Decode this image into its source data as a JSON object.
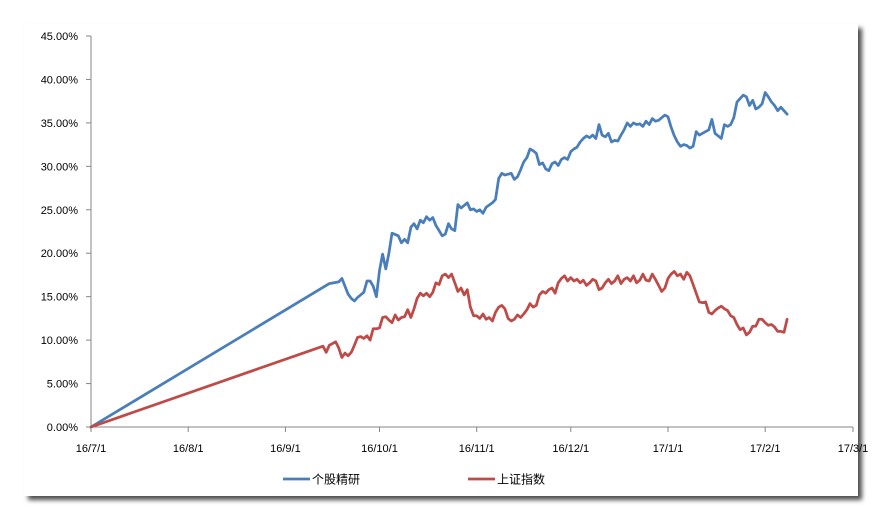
{
  "chart_data": {
    "type": "line",
    "title": "",
    "xlabel": "",
    "ylabel": "",
    "y_tick_labels": [
      "0.00%",
      "5.00%",
      "10.00%",
      "15.00%",
      "20.00%",
      "25.00%",
      "30.00%",
      "35.00%",
      "40.00%",
      "45.00%"
    ],
    "ylim": [
      0,
      45
    ],
    "x_tick_labels": [
      "16/7/1",
      "16/8/1",
      "16/9/1",
      "16/10/1",
      "16/11/1",
      "16/12/1",
      "17/1/1",
      "17/2/1",
      "17/3/1"
    ],
    "xlim": [
      "16/7/1",
      "17/3/1"
    ],
    "grid": false,
    "legend_position": "bottom",
    "series": [
      {
        "name": "个股精研",
        "color": "#4A7EBB",
        "points": [
          [
            "16/7/1",
            0.0
          ],
          [
            "16/9/15",
            16.5
          ],
          [
            "16/9/18",
            16.7
          ],
          [
            "16/9/19",
            17.1
          ],
          [
            "16/9/20",
            16.2
          ],
          [
            "16/9/21",
            15.3
          ],
          [
            "16/9/22",
            14.8
          ],
          [
            "16/9/23",
            14.5
          ],
          [
            "16/9/24",
            14.9
          ],
          [
            "16/9/26",
            15.5
          ],
          [
            "16/9/27",
            16.8
          ],
          [
            "16/9/28",
            16.8
          ],
          [
            "16/9/29",
            16.2
          ],
          [
            "16/9/30",
            15.0
          ],
          [
            "16/10/1",
            18.0
          ],
          [
            "16/10/2",
            19.9
          ],
          [
            "16/10/3",
            18.2
          ],
          [
            "16/10/4",
            20.0
          ],
          [
            "16/10/5",
            22.3
          ],
          [
            "16/10/7",
            22.0
          ],
          [
            "16/10/8",
            21.2
          ],
          [
            "16/10/9",
            21.6
          ],
          [
            "16/10/10",
            21.2
          ],
          [
            "16/10/11",
            23.0
          ],
          [
            "16/10/12",
            23.4
          ],
          [
            "16/10/13",
            22.8
          ],
          [
            "16/10/14",
            23.8
          ],
          [
            "16/10/15",
            23.5
          ],
          [
            "16/10/16",
            24.2
          ],
          [
            "16/10/17",
            23.8
          ],
          [
            "16/10/18",
            24.1
          ],
          [
            "16/10/19",
            23.2
          ],
          [
            "16/10/20",
            22.6
          ],
          [
            "16/10/21",
            22.0
          ],
          [
            "16/10/22",
            22.2
          ],
          [
            "16/10/23",
            23.4
          ],
          [
            "16/10/24",
            22.8
          ],
          [
            "16/10/25",
            22.6
          ],
          [
            "16/10/26",
            25.6
          ],
          [
            "16/10/27",
            25.2
          ],
          [
            "16/10/28",
            25.5
          ],
          [
            "16/10/29",
            25.8
          ],
          [
            "16/10/30",
            25.0
          ],
          [
            "16/10/31",
            25.1
          ],
          [
            "16/11/1",
            24.8
          ],
          [
            "16/11/2",
            25.0
          ],
          [
            "16/11/3",
            24.6
          ],
          [
            "16/11/4",
            25.3
          ],
          [
            "16/11/6",
            25.8
          ],
          [
            "16/11/7",
            26.2
          ],
          [
            "16/11/8",
            28.6
          ],
          [
            "16/11/9",
            29.2
          ],
          [
            "16/11/10",
            29.0
          ],
          [
            "16/11/11",
            29.1
          ],
          [
            "16/11/12",
            29.2
          ],
          [
            "16/11/13",
            28.5
          ],
          [
            "16/11/14",
            28.8
          ],
          [
            "16/11/15",
            29.6
          ],
          [
            "16/11/16",
            30.5
          ],
          [
            "16/11/17",
            31.0
          ],
          [
            "16/11/18",
            32.0
          ],
          [
            "16/11/19",
            31.8
          ],
          [
            "16/11/20",
            31.5
          ],
          [
            "16/11/21",
            30.2
          ],
          [
            "16/11/22",
            30.4
          ],
          [
            "16/11/23",
            29.7
          ],
          [
            "16/11/24",
            29.5
          ],
          [
            "16/11/25",
            30.3
          ],
          [
            "16/11/26",
            30.5
          ],
          [
            "16/11/27",
            30.1
          ],
          [
            "16/11/28",
            30.8
          ],
          [
            "16/11/29",
            31.0
          ],
          [
            "16/11/30",
            30.8
          ],
          [
            "16/12/1",
            31.7
          ],
          [
            "16/12/2",
            32.0
          ],
          [
            "16/12/3",
            32.2
          ],
          [
            "16/12/4",
            32.8
          ],
          [
            "16/12/5",
            33.2
          ],
          [
            "16/12/6",
            33.5
          ],
          [
            "16/12/7",
            33.3
          ],
          [
            "16/12/8",
            33.6
          ],
          [
            "16/12/9",
            33.2
          ],
          [
            "16/12/10",
            34.8
          ],
          [
            "16/12/11",
            33.6
          ],
          [
            "16/12/12",
            33.4
          ],
          [
            "16/12/13",
            33.8
          ],
          [
            "16/12/14",
            32.8
          ],
          [
            "16/12/15",
            33.0
          ],
          [
            "16/12/16",
            32.9
          ],
          [
            "16/12/17",
            33.6
          ],
          [
            "16/12/18",
            34.2
          ],
          [
            "16/12/19",
            35.0
          ],
          [
            "16/12/20",
            34.6
          ],
          [
            "16/12/21",
            35.0
          ],
          [
            "16/12/22",
            34.8
          ],
          [
            "16/12/23",
            34.9
          ],
          [
            "16/12/24",
            34.6
          ],
          [
            "16/12/25",
            35.2
          ],
          [
            "16/12/26",
            34.8
          ],
          [
            "16/12/27",
            35.5
          ],
          [
            "16/12/28",
            35.2
          ],
          [
            "16/12/29",
            35.3
          ],
          [
            "16/12/30",
            35.6
          ],
          [
            "16/12/31",
            35.9
          ],
          [
            "17/1/1",
            35.7
          ],
          [
            "17/1/2",
            34.5
          ],
          [
            "17/1/3",
            33.5
          ],
          [
            "17/1/4",
            32.8
          ],
          [
            "17/1/5",
            32.3
          ],
          [
            "17/1/6",
            32.5
          ],
          [
            "17/1/7",
            32.4
          ],
          [
            "17/1/8",
            32.1
          ],
          [
            "17/1/9",
            32.3
          ],
          [
            "17/1/10",
            34.0
          ],
          [
            "17/1/11",
            33.6
          ],
          [
            "17/1/12",
            33.8
          ],
          [
            "17/1/13",
            34.0
          ],
          [
            "17/1/14",
            34.2
          ],
          [
            "17/1/15",
            35.4
          ],
          [
            "17/1/16",
            33.8
          ],
          [
            "17/1/17",
            33.5
          ],
          [
            "17/1/18",
            33.2
          ],
          [
            "17/1/19",
            34.8
          ],
          [
            "17/1/20",
            34.6
          ],
          [
            "17/1/21",
            34.8
          ],
          [
            "17/1/22",
            35.6
          ],
          [
            "17/1/23",
            37.4
          ],
          [
            "17/1/24",
            37.8
          ],
          [
            "17/1/25",
            38.2
          ],
          [
            "17/1/26",
            38.0
          ],
          [
            "17/1/27",
            37.0
          ],
          [
            "17/1/28",
            37.6
          ],
          [
            "17/1/29",
            36.6
          ],
          [
            "17/1/30",
            36.8
          ],
          [
            "17/1/31",
            37.2
          ],
          [
            "17/2/1",
            38.5
          ],
          [
            "17/2/2",
            38.0
          ],
          [
            "17/2/3",
            37.4
          ],
          [
            "17/2/4",
            37.0
          ],
          [
            "17/2/5",
            36.4
          ],
          [
            "17/2/6",
            36.8
          ],
          [
            "17/2/7",
            36.4
          ],
          [
            "17/2/8",
            36.0
          ]
        ]
      },
      {
        "name": "上证指数",
        "color": "#BE4B48",
        "points": [
          [
            "16/7/1",
            0.0
          ],
          [
            "16/9/13",
            9.3
          ],
          [
            "16/9/14",
            8.6
          ],
          [
            "16/9/15",
            9.4
          ],
          [
            "16/9/17",
            9.8
          ],
          [
            "16/9/18",
            9.1
          ],
          [
            "16/9/19",
            8.0
          ],
          [
            "16/9/20",
            8.5
          ],
          [
            "16/9/21",
            8.2
          ],
          [
            "16/9/22",
            8.6
          ],
          [
            "16/9/23",
            9.4
          ],
          [
            "16/9/24",
            10.3
          ],
          [
            "16/9/25",
            10.4
          ],
          [
            "16/9/26",
            10.2
          ],
          [
            "16/9/27",
            10.5
          ],
          [
            "16/9/28",
            10.0
          ],
          [
            "16/9/29",
            11.3
          ],
          [
            "16/9/30",
            11.3
          ],
          [
            "16/10/1",
            11.4
          ],
          [
            "16/10/2",
            12.6
          ],
          [
            "16/10/3",
            12.7
          ],
          [
            "16/10/4",
            12.3
          ],
          [
            "16/10/5",
            12.0
          ],
          [
            "16/10/6",
            12.9
          ],
          [
            "16/10/7",
            12.3
          ],
          [
            "16/10/8",
            12.6
          ],
          [
            "16/10/9",
            12.7
          ],
          [
            "16/10/10",
            13.5
          ],
          [
            "16/10/11",
            12.6
          ],
          [
            "16/10/12",
            13.6
          ],
          [
            "16/10/13",
            14.8
          ],
          [
            "16/10/14",
            15.4
          ],
          [
            "16/10/15",
            15.1
          ],
          [
            "16/10/16",
            15.4
          ],
          [
            "16/10/17",
            15.0
          ],
          [
            "16/10/18",
            15.5
          ],
          [
            "16/10/19",
            16.6
          ],
          [
            "16/10/20",
            16.4
          ],
          [
            "16/10/21",
            17.4
          ],
          [
            "16/10/22",
            17.6
          ],
          [
            "16/10/23",
            17.2
          ],
          [
            "16/10/24",
            17.6
          ],
          [
            "16/10/25",
            16.6
          ],
          [
            "16/10/26",
            15.6
          ],
          [
            "16/10/27",
            16.0
          ],
          [
            "16/10/28",
            15.2
          ],
          [
            "16/10/29",
            15.8
          ],
          [
            "16/10/30",
            13.8
          ],
          [
            "16/10/31",
            12.8
          ],
          [
            "16/11/1",
            12.8
          ],
          [
            "16/11/2",
            12.5
          ],
          [
            "16/11/3",
            13.0
          ],
          [
            "16/11/4",
            12.4
          ],
          [
            "16/11/5",
            12.6
          ],
          [
            "16/11/6",
            12.2
          ],
          [
            "16/11/7",
            13.2
          ],
          [
            "16/11/8",
            13.8
          ],
          [
            "16/11/9",
            14.0
          ],
          [
            "16/11/10",
            13.6
          ],
          [
            "16/11/11",
            12.5
          ],
          [
            "16/11/12",
            12.2
          ],
          [
            "16/11/13",
            12.4
          ],
          [
            "16/11/14",
            12.9
          ],
          [
            "16/11/15",
            12.6
          ],
          [
            "16/11/16",
            13.0
          ],
          [
            "16/11/17",
            13.5
          ],
          [
            "16/11/18",
            14.2
          ],
          [
            "16/11/19",
            13.8
          ],
          [
            "16/11/20",
            14.0
          ],
          [
            "16/11/21",
            15.2
          ],
          [
            "16/11/22",
            15.6
          ],
          [
            "16/11/23",
            15.4
          ],
          [
            "16/11/24",
            15.8
          ],
          [
            "16/11/25",
            16.0
          ],
          [
            "16/11/26",
            15.4
          ],
          [
            "16/11/27",
            16.6
          ],
          [
            "16/11/28",
            17.1
          ],
          [
            "16/11/29",
            17.4
          ],
          [
            "16/11/30",
            16.8
          ],
          [
            "16/12/1",
            17.2
          ],
          [
            "16/12/2",
            16.8
          ],
          [
            "16/12/3",
            17.0
          ],
          [
            "16/12/4",
            16.6
          ],
          [
            "16/12/5",
            16.9
          ],
          [
            "16/12/6",
            16.3
          ],
          [
            "16/12/7",
            16.6
          ],
          [
            "16/12/8",
            17.0
          ],
          [
            "16/12/9",
            16.8
          ],
          [
            "16/12/10",
            15.8
          ],
          [
            "16/12/11",
            16.0
          ],
          [
            "16/12/12",
            16.6
          ],
          [
            "16/12/13",
            17.0
          ],
          [
            "16/12/14",
            16.5
          ],
          [
            "16/12/15",
            16.8
          ],
          [
            "16/12/16",
            17.4
          ],
          [
            "16/12/17",
            16.5
          ],
          [
            "16/12/18",
            17.0
          ],
          [
            "16/12/19",
            17.2
          ],
          [
            "16/12/20",
            16.8
          ],
          [
            "16/12/21",
            17.4
          ],
          [
            "16/12/22",
            16.6
          ],
          [
            "16/12/23",
            16.9
          ],
          [
            "16/12/24",
            17.6
          ],
          [
            "16/12/25",
            16.9
          ],
          [
            "16/12/26",
            16.8
          ],
          [
            "16/12/27",
            17.6
          ],
          [
            "16/12/28",
            17.0
          ],
          [
            "16/12/29",
            16.3
          ],
          [
            "16/12/30",
            15.6
          ],
          [
            "16/12/31",
            16.0
          ],
          [
            "17/1/1",
            17.1
          ],
          [
            "17/1/2",
            17.6
          ],
          [
            "17/1/3",
            17.9
          ],
          [
            "17/1/4",
            17.4
          ],
          [
            "17/1/5",
            17.6
          ],
          [
            "17/1/6",
            17.0
          ],
          [
            "17/1/7",
            17.8
          ],
          [
            "17/1/8",
            17.4
          ],
          [
            "17/1/9",
            16.4
          ],
          [
            "17/1/10",
            15.4
          ],
          [
            "17/1/11",
            14.4
          ],
          [
            "17/1/12",
            14.3
          ],
          [
            "17/1/13",
            14.4
          ],
          [
            "17/1/14",
            13.2
          ],
          [
            "17/1/15",
            13.0
          ],
          [
            "17/1/16",
            13.4
          ],
          [
            "17/1/17",
            13.7
          ],
          [
            "17/1/18",
            13.9
          ],
          [
            "17/1/19",
            13.6
          ],
          [
            "17/1/20",
            13.4
          ],
          [
            "17/1/21",
            12.8
          ],
          [
            "17/1/22",
            12.6
          ],
          [
            "17/1/23",
            11.8
          ],
          [
            "17/1/24",
            11.2
          ],
          [
            "17/1/25",
            11.4
          ],
          [
            "17/1/26",
            10.6
          ],
          [
            "17/1/27",
            10.9
          ],
          [
            "17/1/28",
            11.6
          ],
          [
            "17/1/29",
            11.6
          ],
          [
            "17/1/30",
            12.4
          ],
          [
            "17/1/31",
            12.4
          ],
          [
            "17/2/1",
            12.0
          ],
          [
            "17/2/2",
            11.7
          ],
          [
            "17/2/3",
            11.8
          ],
          [
            "17/2/4",
            11.5
          ],
          [
            "17/2/5",
            11.0
          ],
          [
            "17/2/6",
            11.0
          ],
          [
            "17/2/7",
            10.9
          ],
          [
            "17/2/8",
            12.4
          ]
        ]
      }
    ]
  }
}
